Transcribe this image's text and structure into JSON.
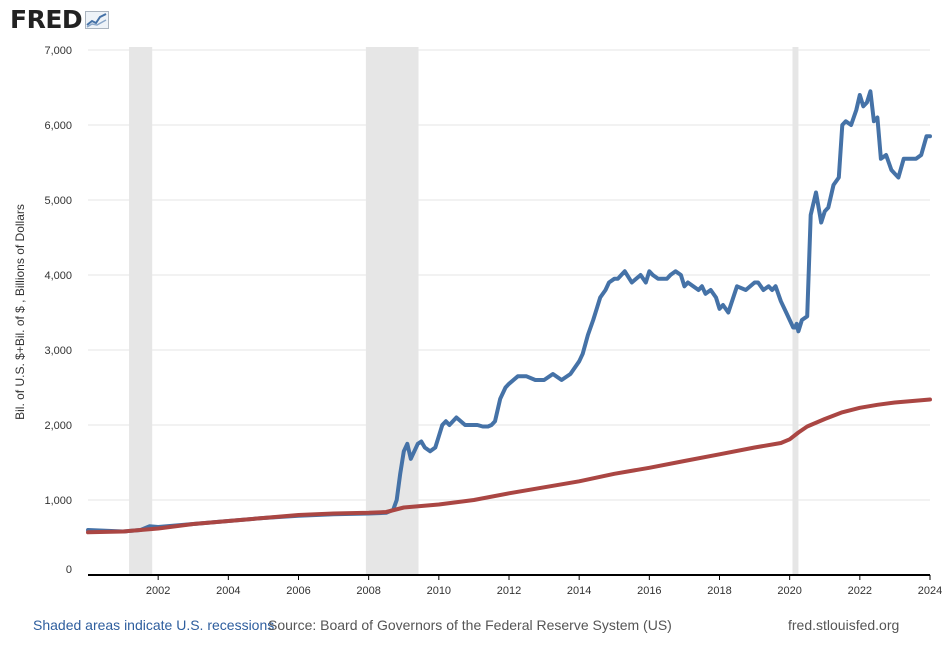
{
  "logo": {
    "text": "FRED",
    "icon": "fred-chart-icon"
  },
  "footer": {
    "recession_note": "Shaded areas indicate U.S. recessions",
    "source": "Source: Board of Governors of the Federal Reserve System (US)",
    "url": "fred.stlouisfed.org"
  },
  "colors": {
    "series1": "#4572a7",
    "series2": "#aa4643",
    "recession": "#e6e6e6",
    "grid": "#e6e6e6"
  },
  "chart_data": {
    "type": "line",
    "title": "",
    "xlabel": "",
    "ylabel": "Bil. of U.S. $+Bil. of $ , Billions of Dollars",
    "xlim": [
      2000.0,
      2024.0
    ],
    "ylim": [
      0,
      7000
    ],
    "y_ticks": [
      "0",
      "1,000",
      "2,000",
      "3,000",
      "4,000",
      "5,000",
      "6,000",
      "7,000"
    ],
    "x_ticks": [
      "2002",
      "2004",
      "2006",
      "2008",
      "2010",
      "2012",
      "2014",
      "2016",
      "2018",
      "2020",
      "2022",
      "2024"
    ],
    "grid": true,
    "recessions": [
      [
        2001.17,
        2001.83
      ],
      [
        2007.92,
        2009.42
      ],
      [
        2020.08,
        2020.25
      ]
    ],
    "series": [
      {
        "x": [
          2000.0,
          2000.5,
          2001.0,
          2001.5,
          2001.75,
          2002.0,
          2003.0,
          2004.0,
          2005.0,
          2006.0,
          2007.0,
          2008.0,
          2008.5,
          2008.7,
          2008.8,
          2008.9,
          2009.0,
          2009.1,
          2009.2,
          2009.3,
          2009.4,
          2009.5,
          2009.6,
          2009.75,
          2009.9,
          2010.0,
          2010.1,
          2010.2,
          2010.3,
          2010.5,
          2010.75,
          2011.0,
          2011.1,
          2011.25,
          2011.4,
          2011.5,
          2011.6,
          2011.75,
          2011.9,
          2012.0,
          2012.25,
          2012.5,
          2012.75,
          2013.0,
          2013.25,
          2013.5,
          2013.75,
          2014.0,
          2014.1,
          2014.25,
          2014.4,
          2014.5,
          2014.6,
          2014.75,
          2014.85,
          2015.0,
          2015.1,
          2015.2,
          2015.3,
          2015.5,
          2015.75,
          2015.9,
          2016.0,
          2016.1,
          2016.25,
          2016.4,
          2016.5,
          2016.6,
          2016.75,
          2016.9,
          2017.0,
          2017.1,
          2017.25,
          2017.4,
          2017.5,
          2017.6,
          2017.75,
          2017.9,
          2018.0,
          2018.1,
          2018.25,
          2018.5,
          2018.75,
          2019.0,
          2019.1,
          2019.25,
          2019.4,
          2019.5,
          2019.6,
          2019.75,
          2019.9,
          2020.0,
          2020.1,
          2020.15,
          2020.2,
          2020.25,
          2020.35,
          2020.5,
          2020.6,
          2020.75,
          2020.9,
          2021.0,
          2021.1,
          2021.25,
          2021.4,
          2021.5,
          2021.6,
          2021.75,
          2021.9,
          2022.0,
          2022.1,
          2022.2,
          2022.3,
          2022.4,
          2022.5,
          2022.6,
          2022.75,
          2022.9,
          2023.0,
          2023.1,
          2023.25,
          2023.4,
          2023.5,
          2023.6,
          2023.75,
          2023.9,
          2024.0
        ],
        "values": [
          600,
          590,
          580,
          600,
          650,
          640,
          680,
          720,
          760,
          790,
          810,
          820,
          830,
          870,
          1000,
          1350,
          1650,
          1750,
          1550,
          1650,
          1750,
          1780,
          1700,
          1650,
          1700,
          1850,
          2000,
          2050,
          2000,
          2100,
          2000,
          2000,
          2000,
          1980,
          1980,
          2000,
          2050,
          2350,
          2500,
          2550,
          2650,
          2650,
          2600,
          2600,
          2680,
          2600,
          2680,
          2850,
          2950,
          3200,
          3400,
          3550,
          3700,
          3800,
          3900,
          3950,
          3950,
          4000,
          4050,
          3900,
          4000,
          3900,
          4050,
          4000,
          3950,
          3950,
          3950,
          4000,
          4050,
          4000,
          3850,
          3900,
          3850,
          3800,
          3850,
          3750,
          3800,
          3700,
          3550,
          3600,
          3500,
          3850,
          3800,
          3900,
          3900,
          3800,
          3850,
          3800,
          3850,
          3650,
          3500,
          3400,
          3300,
          3300,
          3350,
          3250,
          3400,
          3450,
          4800,
          5100,
          4700,
          4850,
          4900,
          5200,
          5300,
          6000,
          6050,
          6000,
          6200,
          6400,
          6250,
          6300,
          6450,
          6050,
          6100,
          5550,
          5600,
          5400,
          5350,
          5300,
          5550,
          5550,
          5550,
          5550,
          5600,
          5850,
          5850
        ],
        "name": ""
      },
      {
        "x": [
          2000.0,
          2001.0,
          2002.0,
          2003.0,
          2004.0,
          2005.0,
          2006.0,
          2007.0,
          2008.0,
          2008.5,
          2009.0,
          2010.0,
          2011.0,
          2012.0,
          2013.0,
          2014.0,
          2015.0,
          2016.0,
          2017.0,
          2018.0,
          2019.0,
          2019.75,
          2020.0,
          2020.25,
          2020.5,
          2021.0,
          2021.5,
          2022.0,
          2022.5,
          2023.0,
          2023.5,
          2024.0
        ],
        "values": [
          570,
          580,
          620,
          680,
          720,
          760,
          800,
          820,
          830,
          840,
          900,
          940,
          1000,
          1090,
          1170,
          1250,
          1350,
          1430,
          1520,
          1610,
          1700,
          1760,
          1810,
          1900,
          1980,
          2080,
          2170,
          2230,
          2270,
          2300,
          2320,
          2340
        ],
        "name": ""
      }
    ]
  }
}
